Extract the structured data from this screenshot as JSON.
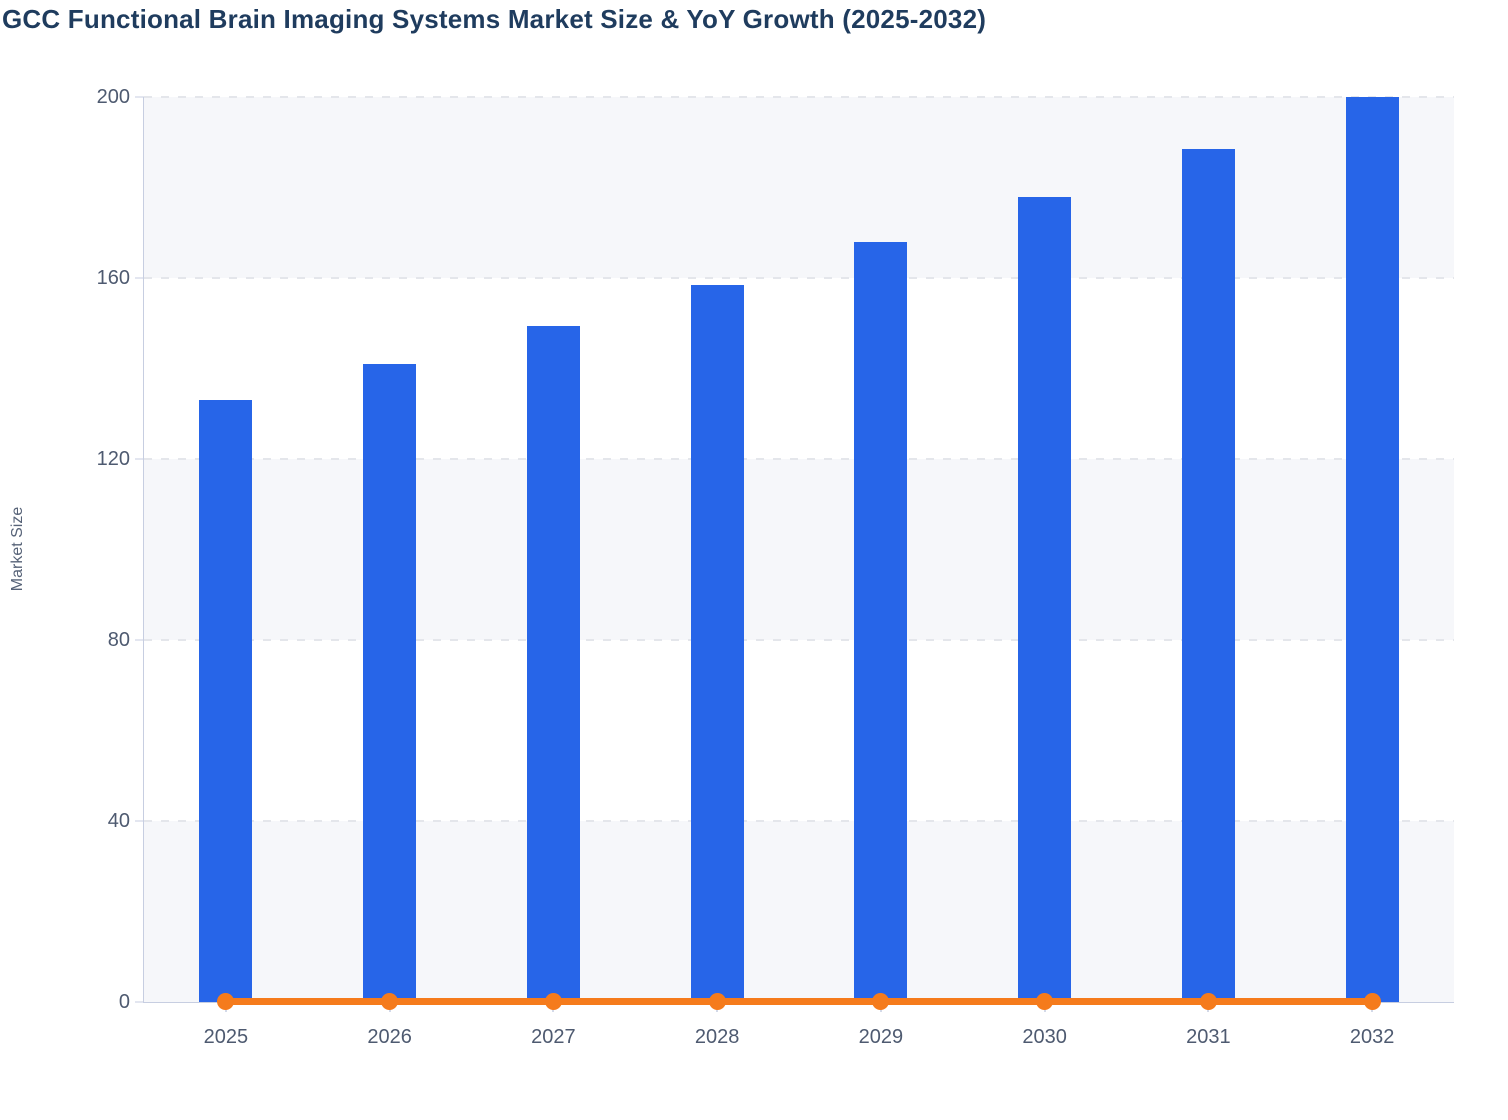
{
  "title": "GCC Functional Brain Imaging Systems Market Size & YoY Growth (2025-2032)",
  "colors": {
    "bar": "#2765e8",
    "line": "#f57b1c",
    "title_text": "#1f3c5e",
    "tick_label": "#4e5a70",
    "axis_line": "#c7cee1",
    "gridline": "#e4e6eb",
    "band_gray": "#f6f7fa",
    "band_white": "#ffffff"
  },
  "chart_data": {
    "type": "bar",
    "title": "GCC Functional Brain Imaging Systems Market Size & YoY Growth (2025-2032)",
    "categories": [
      "2025",
      "2026",
      "2027",
      "2028",
      "2029",
      "2030",
      "2031",
      "2032"
    ],
    "series": [
      {
        "name": "Market Size",
        "type": "bar",
        "color": "#2765e8",
        "values": [
          133,
          141,
          149.4,
          158.4,
          167.9,
          178,
          188.6,
          200
        ]
      },
      {
        "name": "YoY Growth",
        "type": "line",
        "color": "#f57b1c",
        "values": [
          0.06,
          0.06,
          0.06,
          0.06,
          0.06,
          0.06,
          0.06,
          0.06
        ]
      }
    ],
    "xlabel": "",
    "ylabel": "Market Size",
    "ylim": [
      0,
      200
    ],
    "yticks": [
      0,
      40,
      80,
      120,
      160,
      200
    ],
    "grid": "horizontal-dashed",
    "plot_background": "alternating horizontal bands between gridlines (gray/white, gray band from 0-40 upward alternating)",
    "legend_position": "none"
  }
}
